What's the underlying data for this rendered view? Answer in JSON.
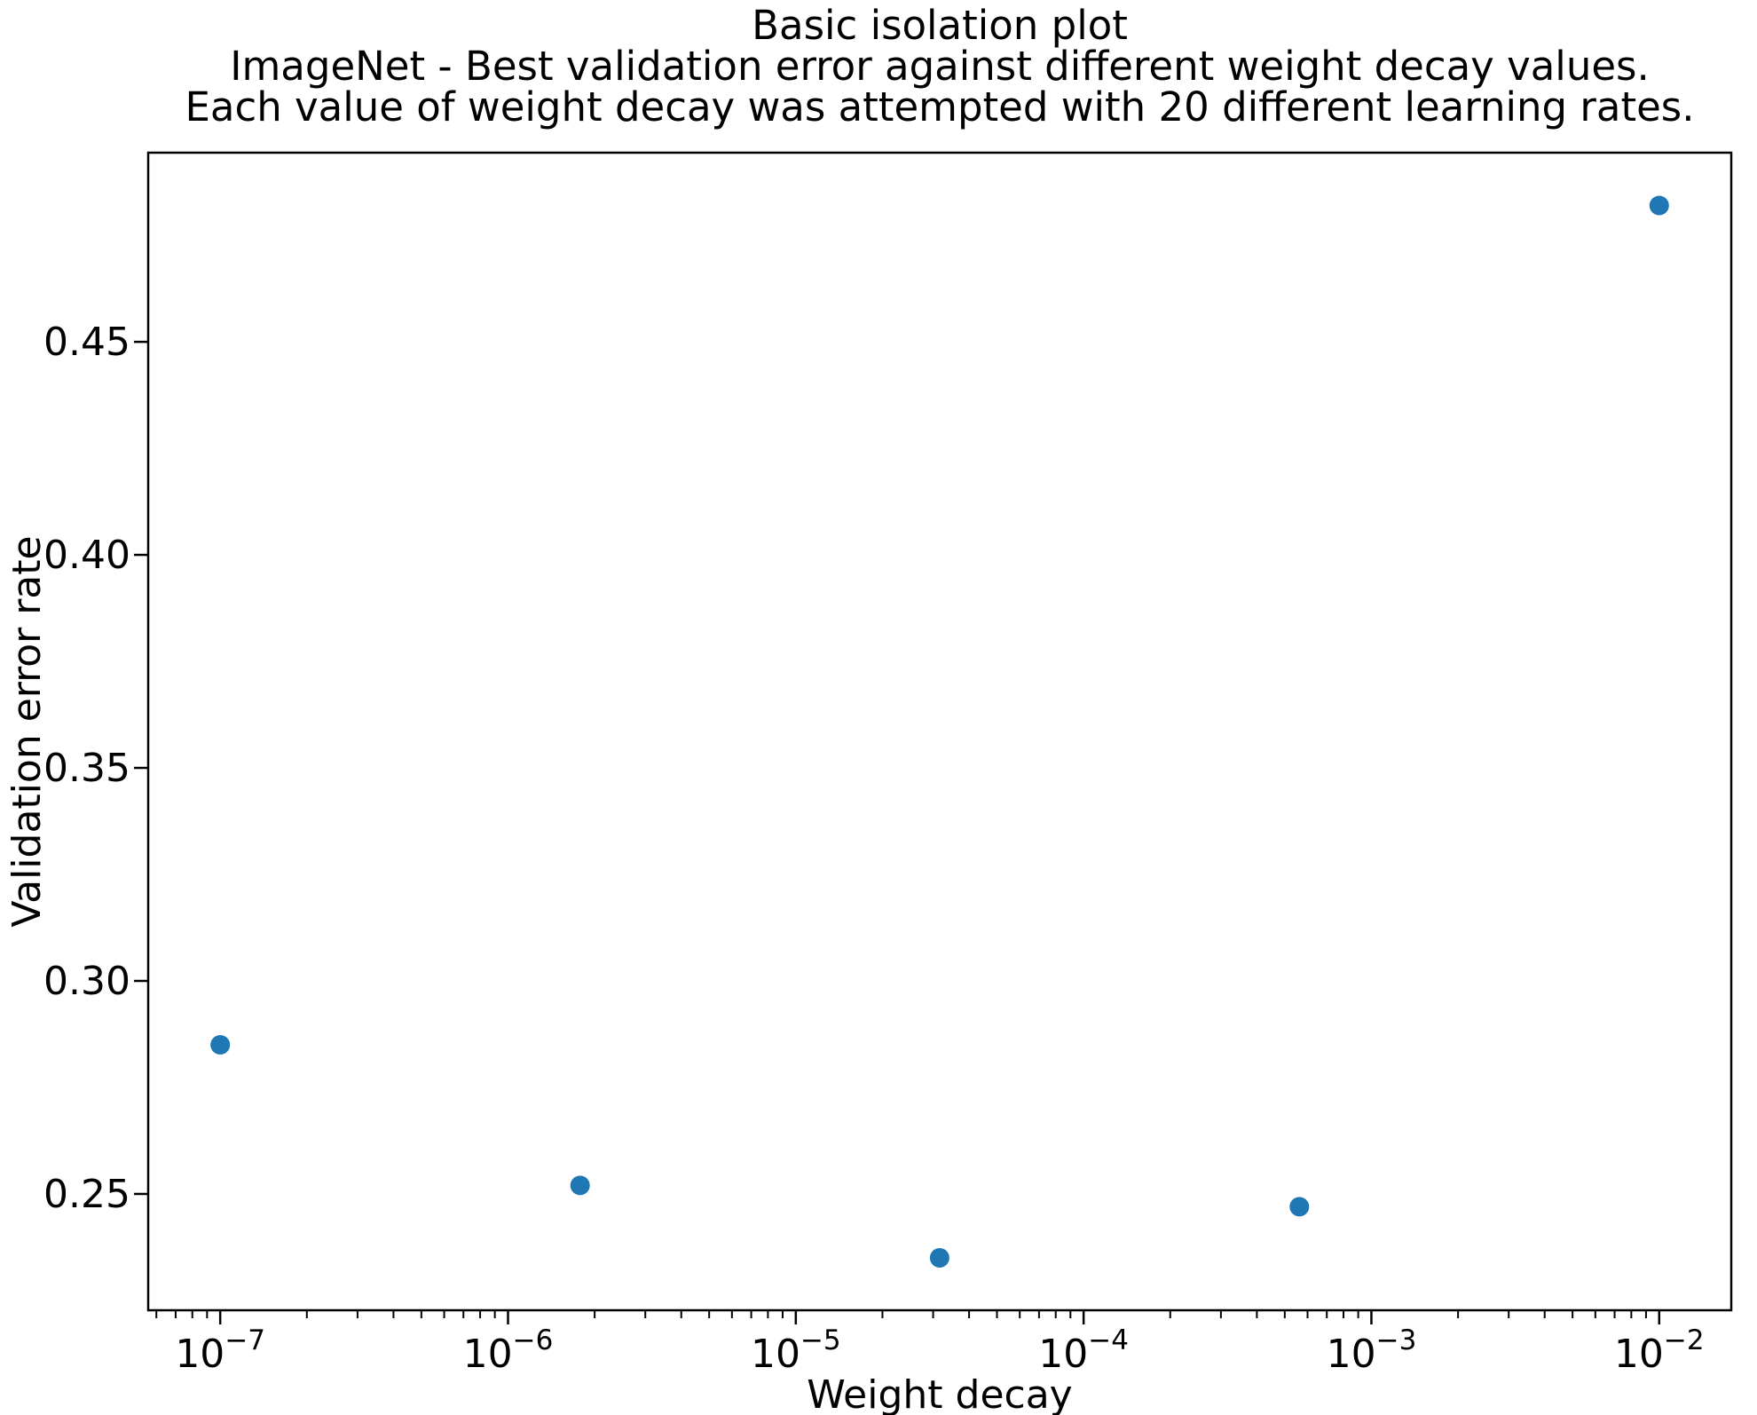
{
  "figure": {
    "title_lines": [
      "Basic isolation plot",
      "ImageNet - Best validation error against different weight decay values.",
      "Each value of weight decay was attempted with 20 different learning rates."
    ]
  },
  "chart_data": {
    "type": "scatter",
    "title": "Basic isolation plot\nImageNet - Best validation error against different weight decay values.\nEach value of weight decay was attempted with 20 different learning rates.",
    "xlabel": "Weight decay",
    "ylabel": "Validation error rate",
    "xscale": "log",
    "yscale": "linear",
    "x": [
      1e-07,
      1.78e-06,
      3.16e-05,
      0.000562,
      0.01
    ],
    "y": [
      0.285,
      0.252,
      0.235,
      0.247,
      0.482
    ],
    "xlim": [
      5.62e-08,
      0.0178
    ],
    "ylim": [
      0.2227,
      0.4944
    ],
    "xticks_log10": [
      -7,
      -6,
      -5,
      -4,
      -3,
      -2
    ],
    "yticks": [
      {
        "value": 0.25,
        "label": "0.25"
      },
      {
        "value": 0.3,
        "label": "0.30"
      },
      {
        "value": 0.35,
        "label": "0.35"
      },
      {
        "value": 0.4,
        "label": "0.40"
      },
      {
        "value": 0.45,
        "label": "0.45"
      }
    ],
    "marker_color": "#1f77b4",
    "axis_color": "#000000",
    "background": "#ffffff",
    "grid": false,
    "legend": "none"
  }
}
